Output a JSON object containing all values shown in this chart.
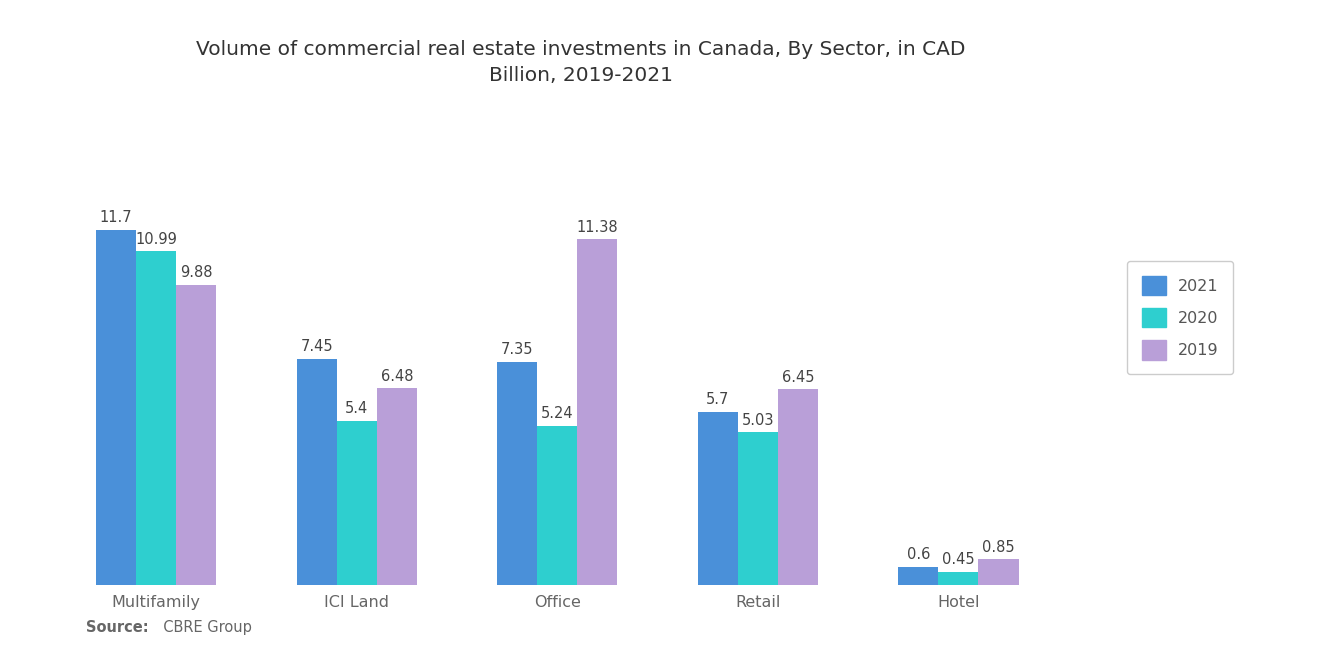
{
  "title": "Volume of commercial real estate investments in Canada, By Sector, in CAD\nBillion, 2019-2021",
  "categories": [
    "Multifamily",
    "ICI Land",
    "Office",
    "Retail",
    "Hotel"
  ],
  "series": {
    "2021": [
      11.7,
      7.45,
      7.35,
      5.7,
      0.6
    ],
    "2020": [
      10.99,
      5.4,
      5.24,
      5.03,
      0.45
    ],
    "2019": [
      9.88,
      6.48,
      11.38,
      6.45,
      0.85
    ]
  },
  "colors": {
    "2021": "#4a90d9",
    "2020": "#2ecfcf",
    "2019": "#b99fd8"
  },
  "years": [
    "2021",
    "2020",
    "2019"
  ],
  "source_bold": "Source:",
  "source_rest": "  CBRE Group",
  "background_color": "#ffffff",
  "bar_width": 0.2,
  "title_fontsize": 14.5,
  "tick_fontsize": 11.5,
  "legend_fontsize": 11.5,
  "value_fontsize": 10.5,
  "ylim": [
    0,
    14.0
  ],
  "xlim_left": -0.45,
  "xlim_right": 4.75
}
